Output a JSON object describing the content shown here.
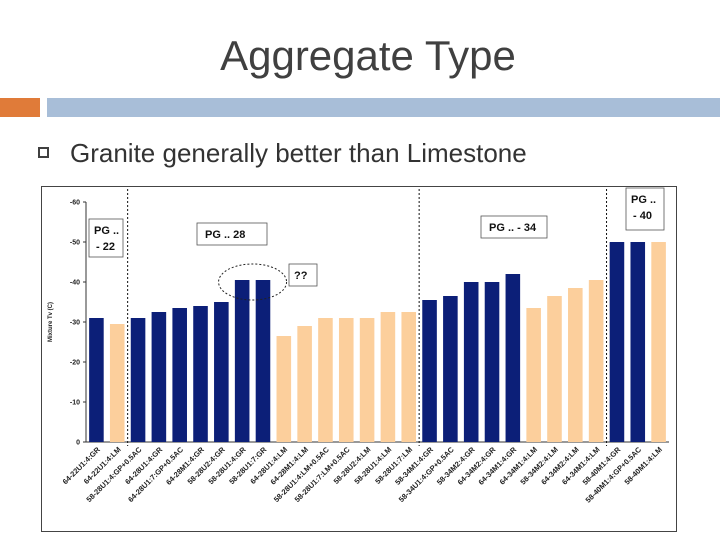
{
  "slide": {
    "title": "Aggregate Type",
    "bullet": "Granite generally better than Limestone"
  },
  "chart_data": {
    "type": "bar",
    "ylabel": "Mixture Tv (C)",
    "ylim": [
      0,
      -60
    ],
    "yticks": [
      "0",
      "-10",
      "-20",
      "-30",
      "-40",
      "-50",
      "-60"
    ],
    "categories": [
      "64-22U1:4:GR",
      "64-22U1:4:LM",
      "58-28U1:4:GP+0.5AC",
      "64-28U1:4:GR",
      "64-28U1:7:GP+0.5AC",
      "64-28M1:4:GR",
      "58-28U2:4:GR",
      "58-28U1:4:GR",
      "58-28U1:7:GR",
      "64-28U1:4:LM",
      "64-28M1:4:LM",
      "58-28U1:4:LM+0.5AC",
      "58-28U1:7:LM+0.5AC",
      "58-28U2:4:LM",
      "58-28U1:4:LM",
      "58-28U1:7:LM",
      "58-34M1:4:GR",
      "58-34U1:4:GP+0.5AC",
      "58-34M2:4:GR",
      "64-34M2:4:GR",
      "64-34M1:4:GR",
      "64-34M1:4:LM",
      "58-34M2:4:LM",
      "64-34M2:4:LM",
      "64-34M1:4:LM",
      "58-40M1:4:GR",
      "58-40M1:4:GP+0.5AC",
      "58-40M1:4:LM"
    ],
    "values": [
      -31,
      -29.5,
      -31,
      -32.5,
      -33.5,
      -34,
      -35,
      -40.5,
      -40.5,
      -26.5,
      -29,
      -31,
      -31,
      -31,
      -32.5,
      -32.5,
      -35.5,
      -36.5,
      -40,
      -40,
      -42,
      -33.5,
      -36.5,
      -38.5,
      -40.5,
      -50,
      -50,
      -50
    ],
    "aggregate": [
      "GR",
      "LM",
      "GR",
      "GR",
      "GR",
      "GR",
      "GR",
      "GR",
      "GR",
      "LM",
      "LM",
      "LM",
      "LM",
      "LM",
      "LM",
      "LM",
      "GR",
      "GR",
      "GR",
      "GR",
      "GR",
      "LM",
      "LM",
      "LM",
      "LM",
      "GR",
      "GR",
      "LM"
    ],
    "colors": {
      "GR": "#0c1f78",
      "LM": "#fccf9c"
    },
    "group_labels": [
      {
        "line1": "PG ..",
        "line2": "- 22"
      },
      {
        "line1": "PG ..  28",
        "line2": ""
      },
      {
        "line1": "PG .. - 34",
        "line2": ""
      },
      {
        "line1": "PG ..",
        "line2": "- 40"
      }
    ],
    "annotation": "??"
  }
}
